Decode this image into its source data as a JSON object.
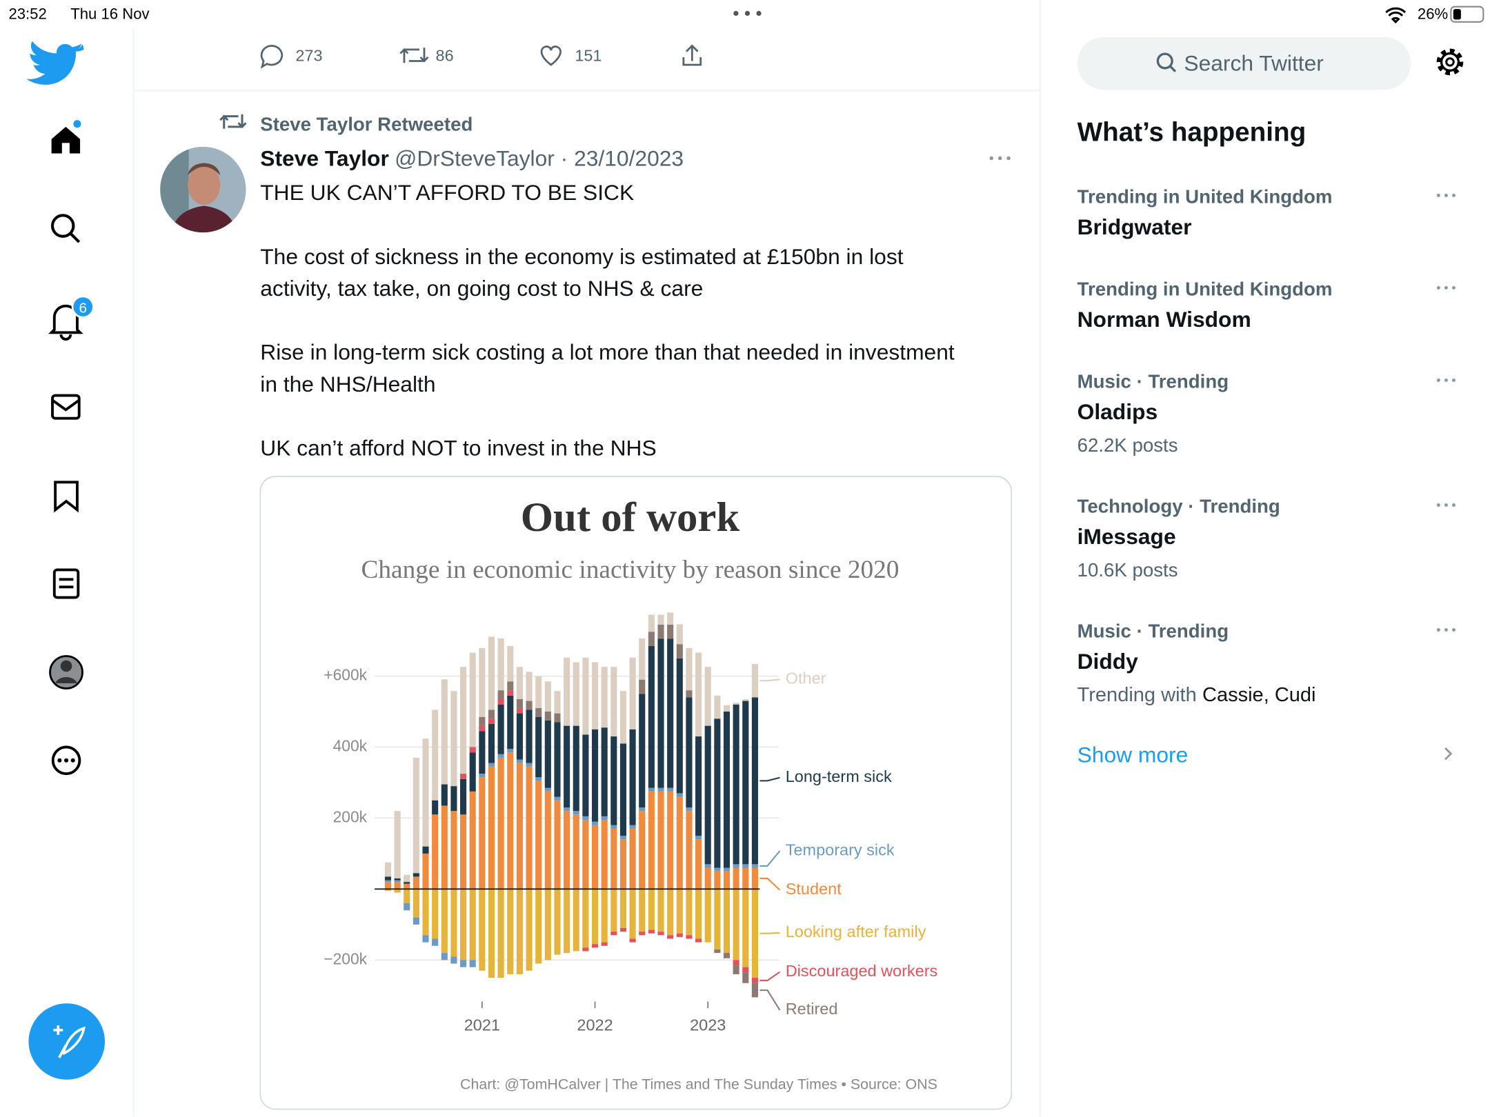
{
  "status_bar": {
    "time": "23:52",
    "date": "Thu 16 Nov",
    "battery": "26%"
  },
  "nav": {
    "notifications_badge": "6"
  },
  "previous_tweet_actions": {
    "replies": "273",
    "retweets": "86",
    "likes": "151"
  },
  "tweet": {
    "retweeted_by": "Steve Taylor Retweeted",
    "author": "Steve Taylor",
    "meta": "@DrSteveTaylor · 23/10/2023",
    "paragraphs": [
      [
        "THE UK CAN’T AFFORD TO BE SICK"
      ],
      [
        "The cost of sickness in the economy is estimated at £150bn in lost",
        "activity, tax take, on going cost to NHS & care"
      ],
      [
        "Rise in long-term sick costing a lot more than that needed in investment",
        "in the NHS/Health"
      ],
      [
        "UK can’t afford NOT to invest in the NHS"
      ]
    ]
  },
  "chart_data": {
    "type": "bar",
    "stacked": true,
    "title": "Out of work",
    "subtitle": "Change in economic inactivity by reason since 2020",
    "source": "Chart: @TomHCalver | The Times and The Sunday Times • Source: ONS",
    "categories": [
      null,
      null,
      null,
      null,
      null,
      null,
      null,
      null,
      null,
      null,
      "2021",
      null,
      null,
      null,
      null,
      null,
      null,
      null,
      null,
      null,
      null,
      null,
      "2022",
      null,
      null,
      null,
      null,
      null,
      null,
      null,
      null,
      null,
      null,
      null,
      "2023",
      null,
      null,
      null,
      null,
      null
    ],
    "ylim": [
      -320000,
      780000
    ],
    "yticks": [
      {
        "value": -200000,
        "label": "−200k"
      },
      {
        "value": 200000,
        "label": "200k"
      },
      {
        "value": 400000,
        "label": "400k"
      },
      {
        "value": 600000,
        "label": "+600k"
      }
    ],
    "grid": true,
    "series": [
      {
        "name": "Student",
        "color": "#f08a3e",
        "values": [
          20000,
          20000,
          15000,
          35000,
          100000,
          210000,
          235000,
          220000,
          210000,
          275000,
          315000,
          345000,
          370000,
          385000,
          355000,
          345000,
          305000,
          275000,
          250000,
          220000,
          210000,
          195000,
          180000,
          195000,
          170000,
          140000,
          170000,
          220000,
          275000,
          275000,
          275000,
          260000,
          220000,
          140000,
          60000,
          50000,
          50000,
          60000,
          60000,
          60000
        ]
      },
      {
        "name": "Looking after family",
        "color": "#e6b43c",
        "values": [
          -5000,
          -10000,
          -40000,
          -80000,
          -130000,
          -140000,
          -180000,
          -190000,
          -200000,
          -200000,
          -230000,
          -250000,
          -250000,
          -240000,
          -240000,
          -230000,
          -210000,
          -200000,
          -185000,
          -180000,
          -175000,
          -165000,
          -155000,
          -150000,
          -120000,
          -110000,
          -140000,
          -120000,
          -115000,
          -120000,
          -130000,
          -125000,
          -130000,
          -140000,
          -150000,
          -170000,
          -180000,
          -200000,
          -220000,
          -250000
        ]
      },
      {
        "name": "Temporary sick",
        "color": "#6b9ac4",
        "values": [
          5000,
          5000,
          -20000,
          -20000,
          -20000,
          -20000,
          -20000,
          -20000,
          -20000,
          -20000,
          10000,
          10000,
          10000,
          10000,
          10000,
          10000,
          10000,
          10000,
          10000,
          10000,
          10000,
          10000,
          10000,
          10000,
          10000,
          10000,
          10000,
          10000,
          10000,
          10000,
          10000,
          10000,
          10000,
          10000,
          10000,
          10000,
          10000,
          10000,
          10000,
          10000
        ]
      },
      {
        "name": "Long-term sick",
        "color": "#1f3a4d",
        "values": [
          10000,
          5000,
          5000,
          10000,
          20000,
          40000,
          60000,
          70000,
          100000,
          110000,
          120000,
          110000,
          140000,
          150000,
          130000,
          150000,
          170000,
          190000,
          210000,
          230000,
          240000,
          230000,
          260000,
          250000,
          250000,
          260000,
          270000,
          320000,
          400000,
          420000,
          420000,
          380000,
          310000,
          280000,
          390000,
          420000,
          440000,
          450000,
          460000,
          470000
        ]
      },
      {
        "name": "Discouraged workers",
        "color": "#e0525e",
        "values": [
          0,
          0,
          0,
          0,
          0,
          0,
          0,
          0,
          15000,
          15000,
          15000,
          15000,
          15000,
          15000,
          15000,
          0,
          0,
          0,
          0,
          0,
          0,
          -10000,
          -10000,
          -10000,
          -10000,
          -10000,
          -10000,
          -10000,
          -10000,
          -10000,
          -10000,
          -10000,
          -10000,
          -10000,
          0,
          0,
          0,
          -15000,
          -15000,
          -15000
        ]
      },
      {
        "name": "Retired",
        "color": "#8c7a72",
        "values": [
          0,
          0,
          0,
          0,
          0,
          0,
          0,
          0,
          0,
          0,
          25000,
          25000,
          25000,
          25000,
          25000,
          25000,
          25000,
          25000,
          25000,
          0,
          0,
          0,
          0,
          0,
          0,
          0,
          0,
          40000,
          40000,
          40000,
          40000,
          40000,
          20000,
          0,
          0,
          -10000,
          -15000,
          -25000,
          -30000,
          -40000
        ]
      },
      {
        "name": "Other",
        "color": "#dccfc2",
        "values": [
          40000,
          190000,
          20000,
          325000,
          304000,
          255000,
          296000,
          268000,
          301000,
          266000,
          194000,
          206000,
          146000,
          100000,
          91000,
          82000,
          89000,
          85000,
          63000,
          192000,
          179000,
          217000,
          189000,
          171000,
          196000,
          148000,
          202000,
          116000,
          48000,
          28000,
          34000,
          56000,
          119000,
          236000,
          166000,
          65000,
          18000,
          5000,
          5000,
          94000
        ]
      }
    ]
  },
  "sidebar": {
    "search_placeholder": "Search Twitter",
    "heading": "What’s happening",
    "trends": [
      {
        "context": "Trending in United Kingdom",
        "name": "Bridgwater"
      },
      {
        "context": "Trending in United Kingdom",
        "name": "Norman Wisdom"
      },
      {
        "context": "Music · Trending",
        "name": "Oladips",
        "posts": "62.2K posts"
      },
      {
        "context": "Technology · Trending",
        "name": "iMessage",
        "posts": "10.6K posts"
      },
      {
        "context": "Music · Trending",
        "name": "Diddy",
        "with_prefix": "Trending with",
        "with_names": "Cassie, Cudi"
      }
    ],
    "show_more": "Show more"
  }
}
